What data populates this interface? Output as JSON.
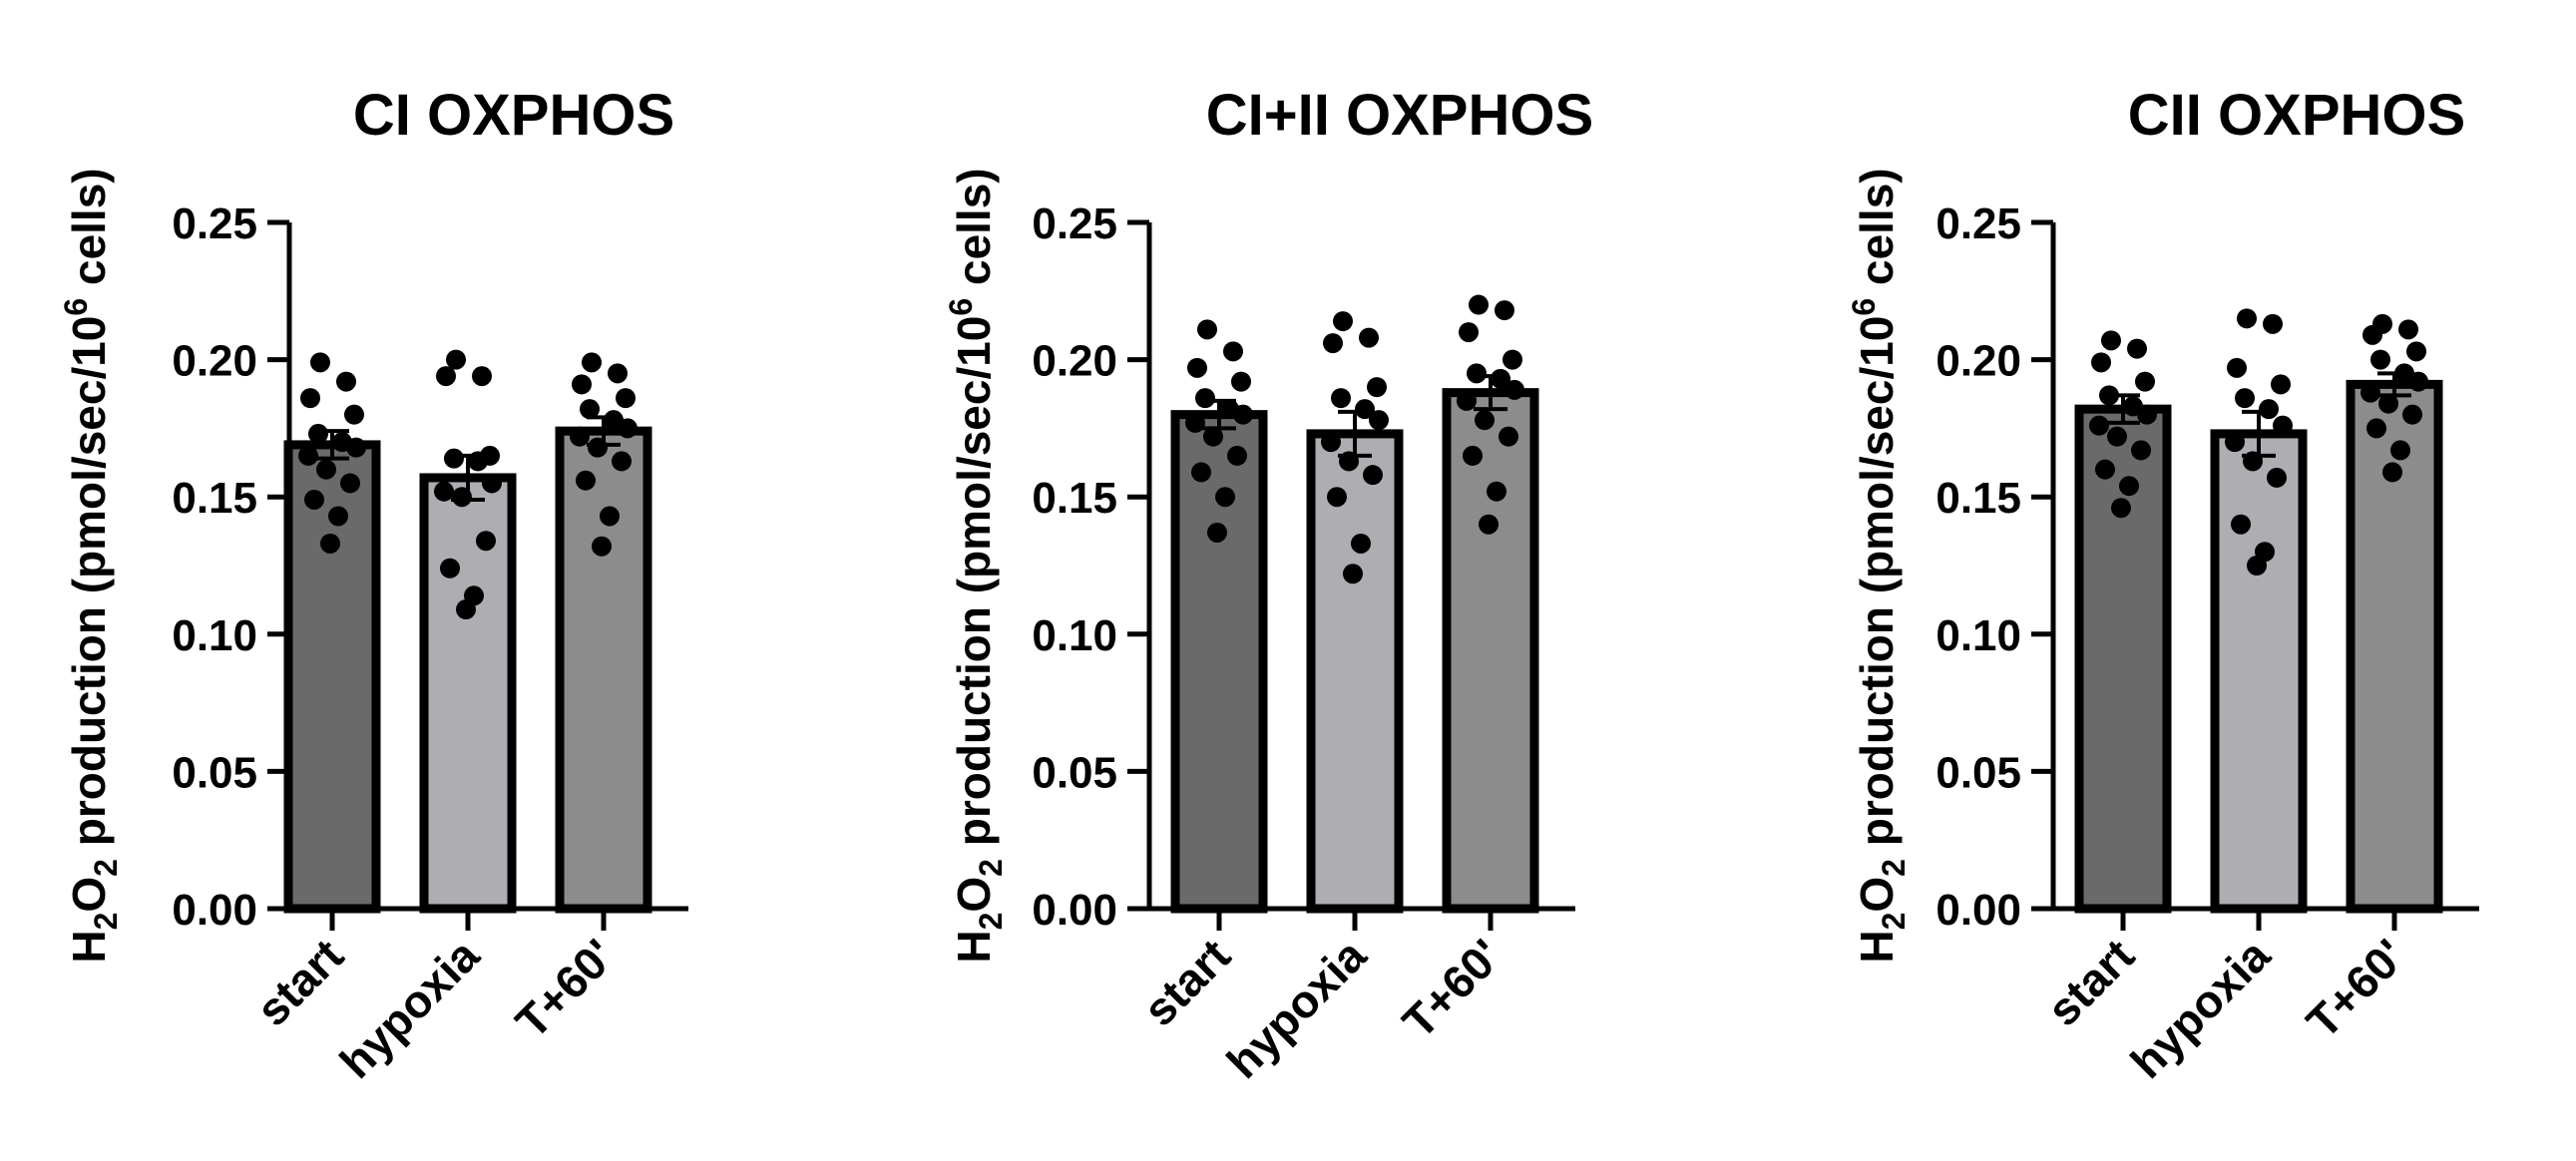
{
  "chart_data": [
    {
      "type": "bar",
      "title": "CI OXPHOS",
      "ylabel": {
        "pre": "H",
        "sub1": "2",
        "mid": "O",
        "sub2": "2",
        "post": " production (pmol/sec/10",
        "sup": "6",
        "end": " cells)"
      },
      "categories": [
        "start",
        "hypoxia",
        "T+60'"
      ],
      "values": [
        0.169,
        0.157,
        0.174
      ],
      "error": [
        0.005,
        0.008,
        0.005
      ],
      "points": [
        [
          0.199,
          0.192,
          0.186,
          0.18,
          0.173,
          0.17,
          0.168,
          0.165,
          0.16,
          0.155,
          0.149,
          0.143,
          0.133
        ],
        [
          0.2,
          0.194,
          0.194,
          0.165,
          0.164,
          0.163,
          0.155,
          0.152,
          0.15,
          0.134,
          0.124,
          0.114,
          0.109
        ],
        [
          0.199,
          0.195,
          0.191,
          0.186,
          0.182,
          0.178,
          0.175,
          0.172,
          0.168,
          0.163,
          0.156,
          0.143,
          0.132
        ]
      ],
      "ylim": [
        0,
        0.25
      ],
      "yticks": [
        "0.00",
        "0.05",
        "0.10",
        "0.15",
        "0.20",
        "0.25"
      ],
      "bar_colors": [
        "#6a6a6a",
        "#aeaeb2",
        "#8c8c8c"
      ]
    },
    {
      "type": "bar",
      "title": "CI+II OXPHOS",
      "ylabel": {
        "pre": "H",
        "sub1": "2",
        "mid": "O",
        "sub2": "2",
        "post": " production (pmol/sec/10",
        "sup": "6",
        "end": " cells)"
      },
      "categories": [
        "start",
        "hypoxia",
        "T+60'"
      ],
      "values": [
        0.18,
        0.173,
        0.188
      ],
      "error": [
        0.005,
        0.008,
        0.006
      ],
      "points": [
        [
          0.211,
          0.203,
          0.197,
          0.192,
          0.186,
          0.182,
          0.18,
          0.177,
          0.172,
          0.165,
          0.159,
          0.15,
          0.137
        ],
        [
          0.214,
          0.208,
          0.206,
          0.19,
          0.186,
          0.182,
          0.178,
          0.17,
          0.163,
          0.158,
          0.15,
          0.133,
          0.122
        ],
        [
          0.22,
          0.218,
          0.21,
          0.2,
          0.195,
          0.193,
          0.189,
          0.185,
          0.178,
          0.172,
          0.165,
          0.152,
          0.14
        ]
      ],
      "ylim": [
        0,
        0.25
      ],
      "yticks": [
        "0.00",
        "0.05",
        "0.10",
        "0.15",
        "0.20",
        "0.25"
      ],
      "bar_colors": [
        "#6a6a6a",
        "#aeaeb2",
        "#8c8c8c"
      ]
    },
    {
      "type": "bar",
      "title": "CII OXPHOS",
      "ylabel": {
        "pre": "H",
        "sub1": "2",
        "mid": "O",
        "sub2": "2",
        "post": " production (pmol/sec/10",
        "sup": "6",
        "end": " cells)"
      },
      "categories": [
        "start",
        "hypoxia",
        "T+60'"
      ],
      "values": [
        0.182,
        0.173,
        0.191
      ],
      "error": [
        0.005,
        0.008,
        0.004
      ],
      "points": [
        [
          0.207,
          0.204,
          0.199,
          0.192,
          0.187,
          0.183,
          0.18,
          0.176,
          0.172,
          0.167,
          0.16,
          0.154,
          0.146
        ],
        [
          0.215,
          0.213,
          0.197,
          0.191,
          0.186,
          0.182,
          0.176,
          0.17,
          0.163,
          0.157,
          0.14,
          0.13,
          0.125
        ],
        [
          0.213,
          0.211,
          0.209,
          0.203,
          0.2,
          0.195,
          0.192,
          0.188,
          0.184,
          0.18,
          0.175,
          0.167,
          0.159
        ]
      ],
      "ylim": [
        0,
        0.25
      ],
      "yticks": [
        "0.00",
        "0.05",
        "0.10",
        "0.15",
        "0.20",
        "0.25"
      ],
      "bar_colors": [
        "#6a6a6a",
        "#aeaeb2",
        "#8c8c8c"
      ]
    }
  ]
}
